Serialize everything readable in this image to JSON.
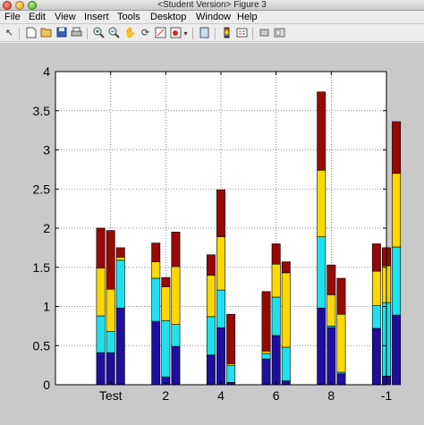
{
  "window": {
    "title": "<Student Version> Figure 3"
  },
  "menu": [
    "File",
    "Edit",
    "View",
    "Insert",
    "Tools",
    "Desktop",
    "Window",
    "Help"
  ],
  "toolbar": {
    "icons": [
      "arrow-icon",
      "new-figure-icon",
      "open-icon",
      "save-icon",
      "print-icon",
      "zoom-in-icon",
      "zoom-out-icon",
      "pan-icon",
      "rotate-icon",
      "data-cursor-icon",
      "brush-icon",
      "dropdown-icon",
      "link-icon",
      "colorbar-icon",
      "legend-icon",
      "hide-plot-tools-icon",
      "show-plot-tools-icon"
    ]
  },
  "colors": {
    "figure_bg": "#c9c9c9",
    "axes_bg": "#ffffff",
    "stack": [
      "#1e0f9f",
      "#1ee1ef",
      "#fbd800",
      "#980804"
    ]
  },
  "chart_data": {
    "type": "bar",
    "stacked": true,
    "grid": true,
    "xlabel": "",
    "ylabel": "",
    "ylim": [
      0,
      4
    ],
    "yticks": [
      0,
      0.5,
      1,
      1.5,
      2,
      2.5,
      3,
      3.5,
      4
    ],
    "ytick_labels": [
      "0",
      "0.5",
      "1",
      "1.5",
      "2",
      "2.5",
      "3",
      "3.5",
      "4"
    ],
    "xlim": [
      -2.5,
      0.5
    ],
    "xticks": [
      -2,
      -1.5,
      -1,
      -0.5,
      0,
      0.5
    ],
    "xtick_labels": [
      "Test",
      "2",
      "4",
      "6",
      "8",
      "-1"
    ],
    "group_width": 0.27,
    "bars_per_group": 3,
    "groups": [
      {
        "x": -2,
        "bars": [
          [
            0.41,
            0.47,
            0.61,
            0.51
          ],
          [
            0.41,
            0.27,
            0.54,
            0.75
          ],
          [
            0.98,
            0.61,
            0.04,
            0.12
          ]
        ]
      },
      {
        "x": -1.5,
        "bars": [
          [
            0.81,
            0.55,
            0.21,
            0.24
          ],
          [
            0.1,
            0.72,
            0.43,
            0.12
          ],
          [
            0.49,
            0.28,
            0.74,
            0.44
          ]
        ]
      },
      {
        "x": -1,
        "bars": [
          [
            0.38,
            0.49,
            0.53,
            0.26
          ],
          [
            0.73,
            0.48,
            0.68,
            0.6
          ],
          [
            0.03,
            0.22,
            0.02,
            0.63
          ]
        ]
      },
      {
        "x": -0.5,
        "bars": [
          [
            0.33,
            0.07,
            0.03,
            0.76
          ],
          [
            0.63,
            0.49,
            0.42,
            0.26
          ],
          [
            0.05,
            0.43,
            0.95,
            0.14
          ]
        ]
      },
      {
        "x": 0,
        "bars": [
          [
            0.98,
            0.91,
            0.85,
            1.0
          ],
          [
            0.73,
            0.02,
            0.4,
            0.38
          ],
          [
            0.14,
            0.02,
            0.74,
            0.46
          ]
        ]
      },
      {
        "x": 0.5,
        "bars": [
          [
            0.72,
            0.29,
            0.44,
            0.35
          ],
          [
            0.11,
            0.94,
            0.47,
            0.23
          ],
          [
            0.89,
            0.87,
            0.94,
            0.66
          ]
        ]
      }
    ]
  }
}
